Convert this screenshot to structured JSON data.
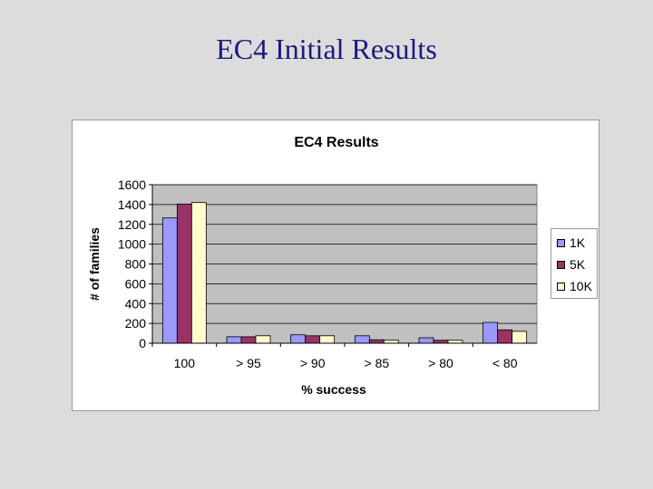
{
  "slide": {
    "title": "EC4 Initial Results"
  },
  "chart_data": {
    "type": "bar",
    "title": "EC4 Results",
    "xlabel": "% success",
    "ylabel": "# of families",
    "categories": [
      "100",
      "> 95",
      "> 90",
      "> 85",
      "> 80",
      "< 80"
    ],
    "series": [
      {
        "name": "1K",
        "color": "#9999ff",
        "values": [
          1265,
          65,
          85,
          75,
          55,
          210
        ]
      },
      {
        "name": "5K",
        "color": "#993366",
        "values": [
          1405,
          65,
          75,
          35,
          30,
          135
        ]
      },
      {
        "name": "10K",
        "color": "#ffffcc",
        "values": [
          1420,
          75,
          75,
          30,
          30,
          120
        ]
      }
    ],
    "ylim": [
      0,
      1600
    ],
    "yticks": [
      0,
      200,
      400,
      600,
      800,
      1000,
      1200,
      1400,
      1600
    ],
    "grid": true,
    "legend_position": "right",
    "plot_background": "#c0c0c0"
  }
}
